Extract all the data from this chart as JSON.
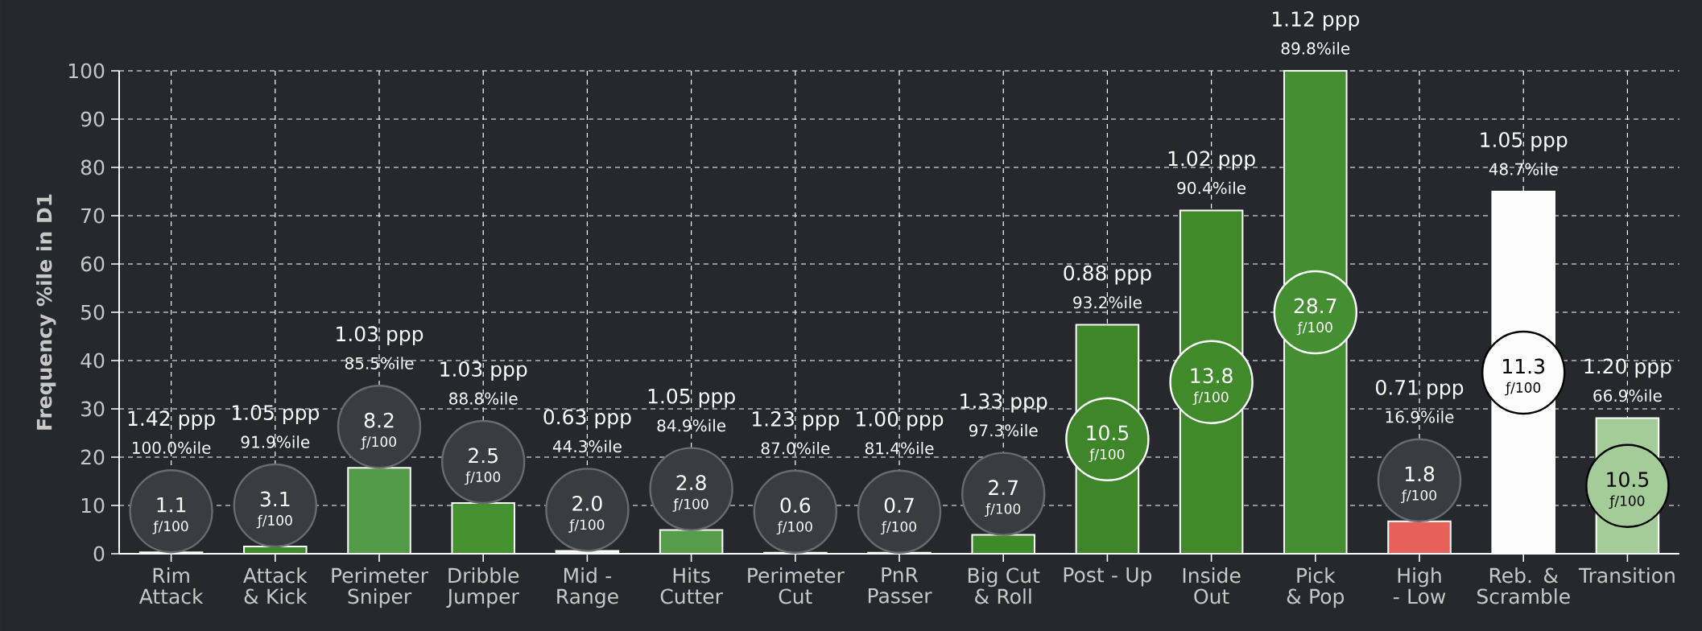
{
  "chart_data": {
    "type": "bar",
    "ylabel": "Frequency %ile in D1",
    "categories": [
      "Rim Attack",
      "Attack & Kick",
      "Perimeter Sniper",
      "Dribble Jumper",
      "Mid - Range",
      "Hits Cutter",
      "Perimeter Cut",
      "PnR Passer",
      "Big Cut & Roll",
      "Post - Up",
      "Inside Out",
      "Pick & Pop",
      "High - Low",
      "Reb. & Scramble",
      "Transition"
    ],
    "values": [
      0.3,
      1.5,
      17.8,
      10.5,
      0.6,
      4.9,
      0.2,
      0.2,
      3.9,
      47.4,
      71.1,
      100,
      6.7,
      75.0,
      28.1
    ],
    "colors": [
      "#f0f0f0",
      "#3f8a2b",
      "#529a46",
      "#45902f",
      "#f0f0f0",
      "#569c49",
      "#f0f0f0",
      "#f0f0f0",
      "#3d8a2b",
      "#3e8629",
      "#408a2c",
      "#458f33",
      "#e8605a",
      "#fdfdfd",
      "#a4cc98"
    ],
    "ylim": [
      0,
      100
    ],
    "yticks": [
      0,
      10,
      20,
      30,
      40,
      50,
      60,
      70,
      80,
      90,
      100
    ],
    "grid": true,
    "annotations": [
      "1.42 ppp",
      "100.0%ile",
      "1.1",
      "ƒ/100",
      "1.05 ppp",
      "91.9%ile",
      "3.1",
      "ƒ/100",
      "1.03 ppp",
      "85.5%ile",
      "8.2",
      "ƒ/100",
      "1.03 ppp",
      "88.8%ile",
      "2.5",
      "ƒ/100",
      "0.63 ppp",
      "44.3%ile",
      "2.0",
      "ƒ/100",
      "1.05 ppp",
      "84.9%ile",
      "2.8",
      "ƒ/100",
      "1.23 ppp",
      "87.0%ile",
      "0.6",
      "ƒ/100",
      "1.00 ppp",
      "81.4%ile",
      "0.7",
      "ƒ/100",
      "1.33 ppp",
      "97.3%ile",
      "2.7",
      "ƒ/100",
      "0.88 ppp",
      "93.2%ile",
      "10.5",
      "ƒ/100",
      "1.02 ppp",
      "90.4%ile",
      "13.8",
      "ƒ/100",
      "1.12 ppp",
      "89.8%ile",
      "28.7",
      "ƒ/100",
      "0.71 ppp",
      "16.9%ile",
      "1.8",
      "ƒ/100",
      "1.05 ppp",
      "48.7%ile",
      "11.3",
      "ƒ/100",
      "1.20 ppp",
      "66.9%ile",
      "10.5",
      "ƒ/100"
    ]
  }
}
